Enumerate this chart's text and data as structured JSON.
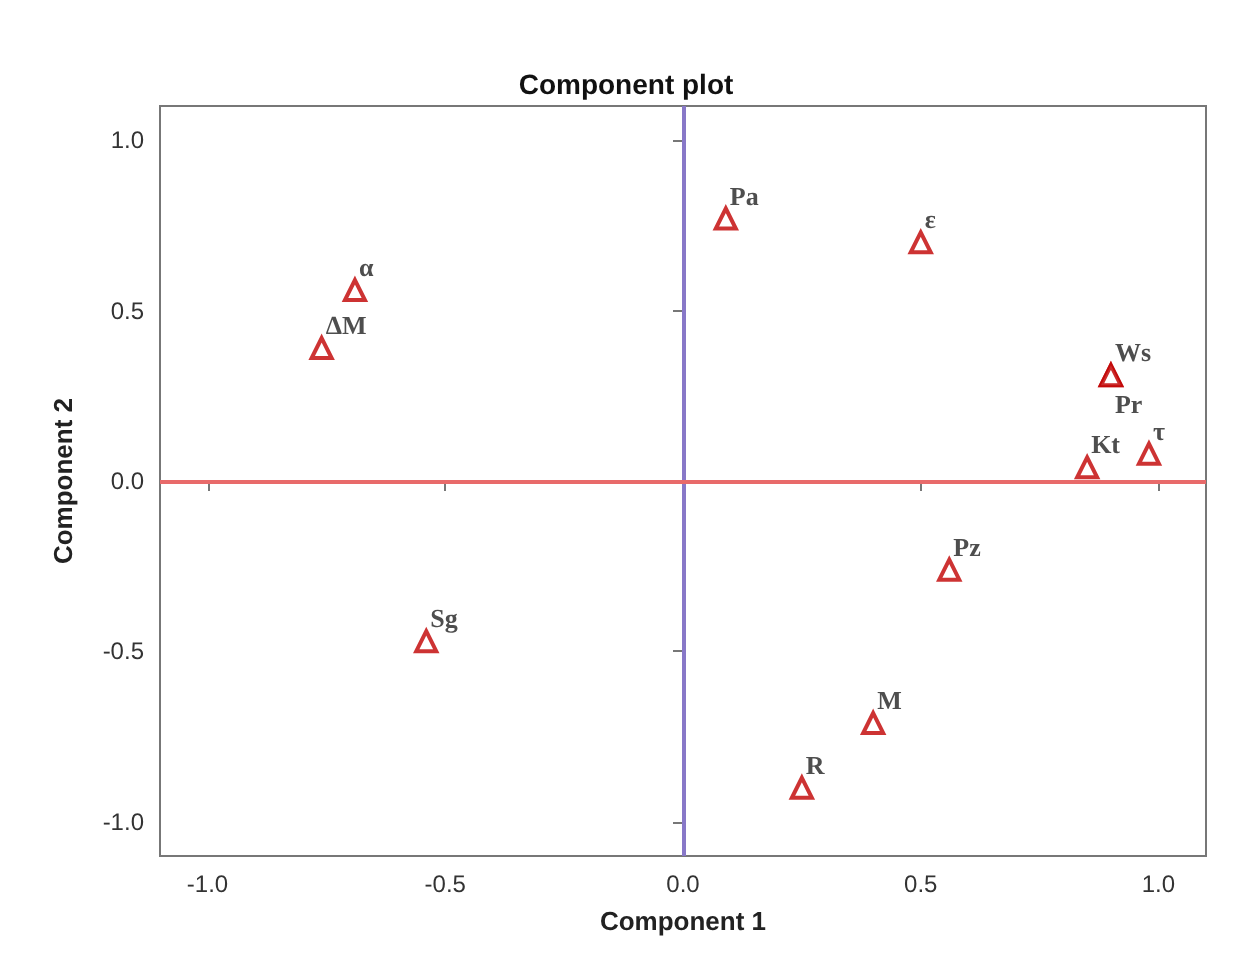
{
  "chart_data": {
    "type": "scatter",
    "title": "Component plot",
    "xlabel": "Component 1",
    "ylabel": "Component 2",
    "marker": "triangle",
    "grid": false,
    "legend": false,
    "xlim": [
      -1.1,
      1.1
    ],
    "ylim": [
      -1.1,
      1.1
    ],
    "xticks": [
      {
        "value": -1,
        "label": "-1.0"
      },
      {
        "value": -0.5,
        "label": "-0.5"
      },
      {
        "value": 0,
        "label": "0.0"
      },
      {
        "value": 0.5,
        "label": "0.5"
      },
      {
        "value": 1,
        "label": "1.0"
      }
    ],
    "yticks": [
      {
        "value": -1,
        "label": "-1.0"
      },
      {
        "value": -0.5,
        "label": "-0.5"
      },
      {
        "value": 0,
        "label": "0.0"
      },
      {
        "value": 0.5,
        "label": "0.5"
      },
      {
        "value": 1,
        "label": "1.0"
      }
    ],
    "ref_lines": [
      {
        "axis": "x",
        "value": 0,
        "color": "#8878c8"
      },
      {
        "axis": "y",
        "value": 0,
        "color": "#e86a6a"
      }
    ],
    "series": [
      {
        "name": "α",
        "color": "#c00000",
        "x": [
          -0.69
        ],
        "values": [
          0.56
        ]
      },
      {
        "name": "ΔM",
        "color": "#c00000",
        "x": [
          -0.76
        ],
        "values": [
          0.39
        ]
      },
      {
        "name": "Sg",
        "color": "#c00000",
        "x": [
          -0.54
        ],
        "values": [
          -0.47
        ]
      },
      {
        "name": "Pa",
        "color": "#c00000",
        "x": [
          0.09
        ],
        "values": [
          0.77
        ]
      },
      {
        "name": "ε",
        "color": "#c00000",
        "x": [
          0.5
        ],
        "values": [
          0.7
        ]
      },
      {
        "name": "Ws",
        "color": "#c00000",
        "x": [
          0.9
        ],
        "values": [
          0.31
        ]
      },
      {
        "name": "Pr",
        "color": "#c00000",
        "x": [
          0.9
        ],
        "values": [
          0.31
        ]
      },
      {
        "name": "Kt",
        "color": "#c00000",
        "x": [
          0.85
        ],
        "values": [
          0.04
        ]
      },
      {
        "name": "τ",
        "color": "#c00000",
        "x": [
          0.98
        ],
        "values": [
          0.08
        ]
      },
      {
        "name": "Pz",
        "color": "#c00000",
        "x": [
          0.56
        ],
        "values": [
          -0.26
        ]
      },
      {
        "name": "M",
        "color": "#c00000",
        "x": [
          0.4
        ],
        "values": [
          -0.71
        ]
      },
      {
        "name": "R",
        "color": "#c00000",
        "x": [
          0.25
        ],
        "values": [
          -0.9
        ]
      }
    ]
  }
}
